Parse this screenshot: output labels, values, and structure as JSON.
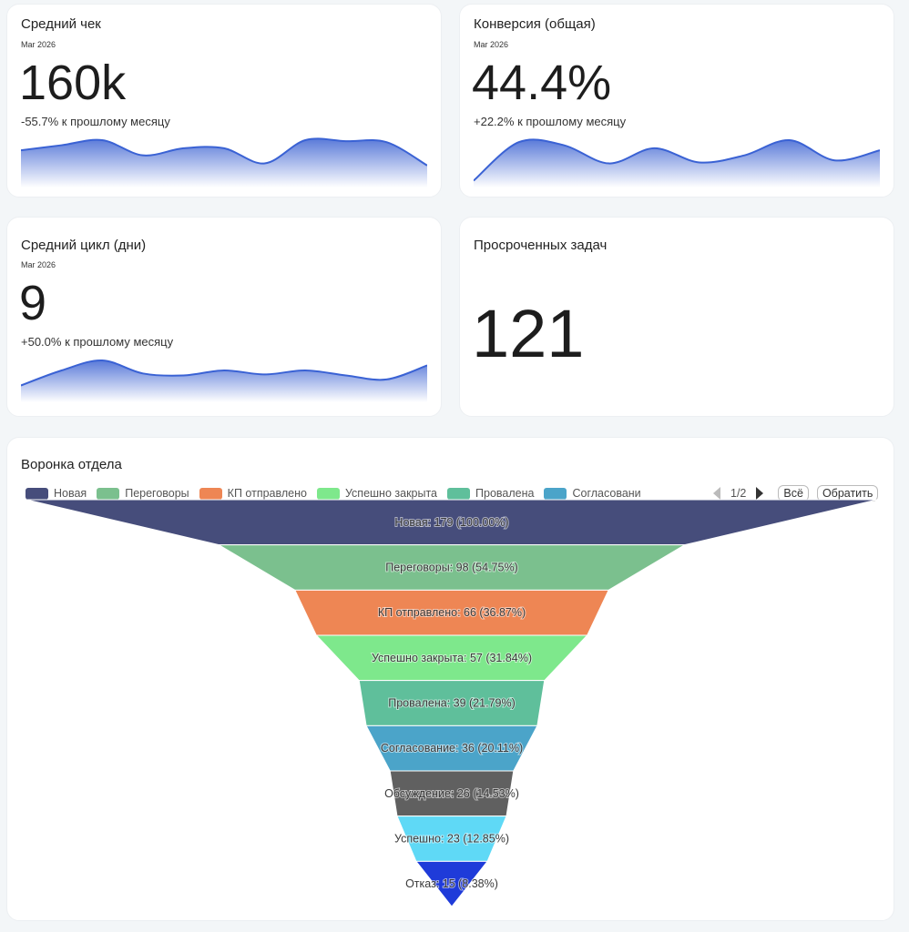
{
  "cards": [
    {
      "title": "Средний чек",
      "period": "Mar 2026",
      "value": "160k",
      "delta": "-55.7% к прошлому месяцу",
      "sparkline": [
        35,
        40,
        45,
        30,
        37,
        37,
        22,
        45,
        44,
        43,
        20
      ]
    },
    {
      "title": "Конверсия (общая)",
      "period": "Mar 2026",
      "value": "44.4%",
      "delta": "+22.2% к прошлому месяцу",
      "sparkline": [
        5,
        43,
        40,
        22,
        37,
        23,
        30,
        45,
        25,
        35
      ]
    },
    {
      "title": "Средний цикл (дни)",
      "period": "Mar 2026",
      "value": "9",
      "delta": "+50.0% к прошлому месяцу",
      "sparkline": [
        15,
        30,
        40,
        27,
        25,
        30,
        26,
        30,
        25,
        21,
        35
      ]
    },
    {
      "title": "Просроченных задач",
      "value": "121"
    }
  ],
  "funnel": {
    "title": "Воронка отдела",
    "legend": {
      "items": [
        "Новая",
        "Переговоры",
        "КП отправлено",
        "Успешно закрыта",
        "Провалена",
        "Согласовани"
      ],
      "page": "1/2",
      "buttons": [
        "Всё",
        "Обратить"
      ]
    },
    "stages": [
      {
        "value": 179,
        "value_label": "Новая: 179 (100.00%)",
        "color": "#464d7b"
      },
      {
        "value": 98,
        "value_label": "Переговоры: 98 (54.75%)",
        "color": "#7bc08e"
      },
      {
        "value": 66,
        "value_label": "КП отправлено: 66 (36.87%)",
        "color": "#ee8654"
      },
      {
        "value": 57,
        "value_label": "Успешно закрыта: 57 (31.84%)",
        "color": "#7ee88c"
      },
      {
        "value": 39,
        "value_label": "Провалена: 39 (21.79%)",
        "color": "#5fbf9b"
      },
      {
        "value": 36,
        "value_label": "Согласование: 36 (20.11%)",
        "color": "#4ba4c9"
      },
      {
        "value": 26,
        "value_label": "Обсуждение: 26 (14.53%)",
        "color": "#606060"
      },
      {
        "value": 23,
        "value_label": "Успешно: 23 (12.85%)",
        "color": "#5fd9f6"
      },
      {
        "value": 15,
        "value_label": "Отказ: 15 (8.38%)",
        "color": "#1f3bd9"
      }
    ]
  }
}
